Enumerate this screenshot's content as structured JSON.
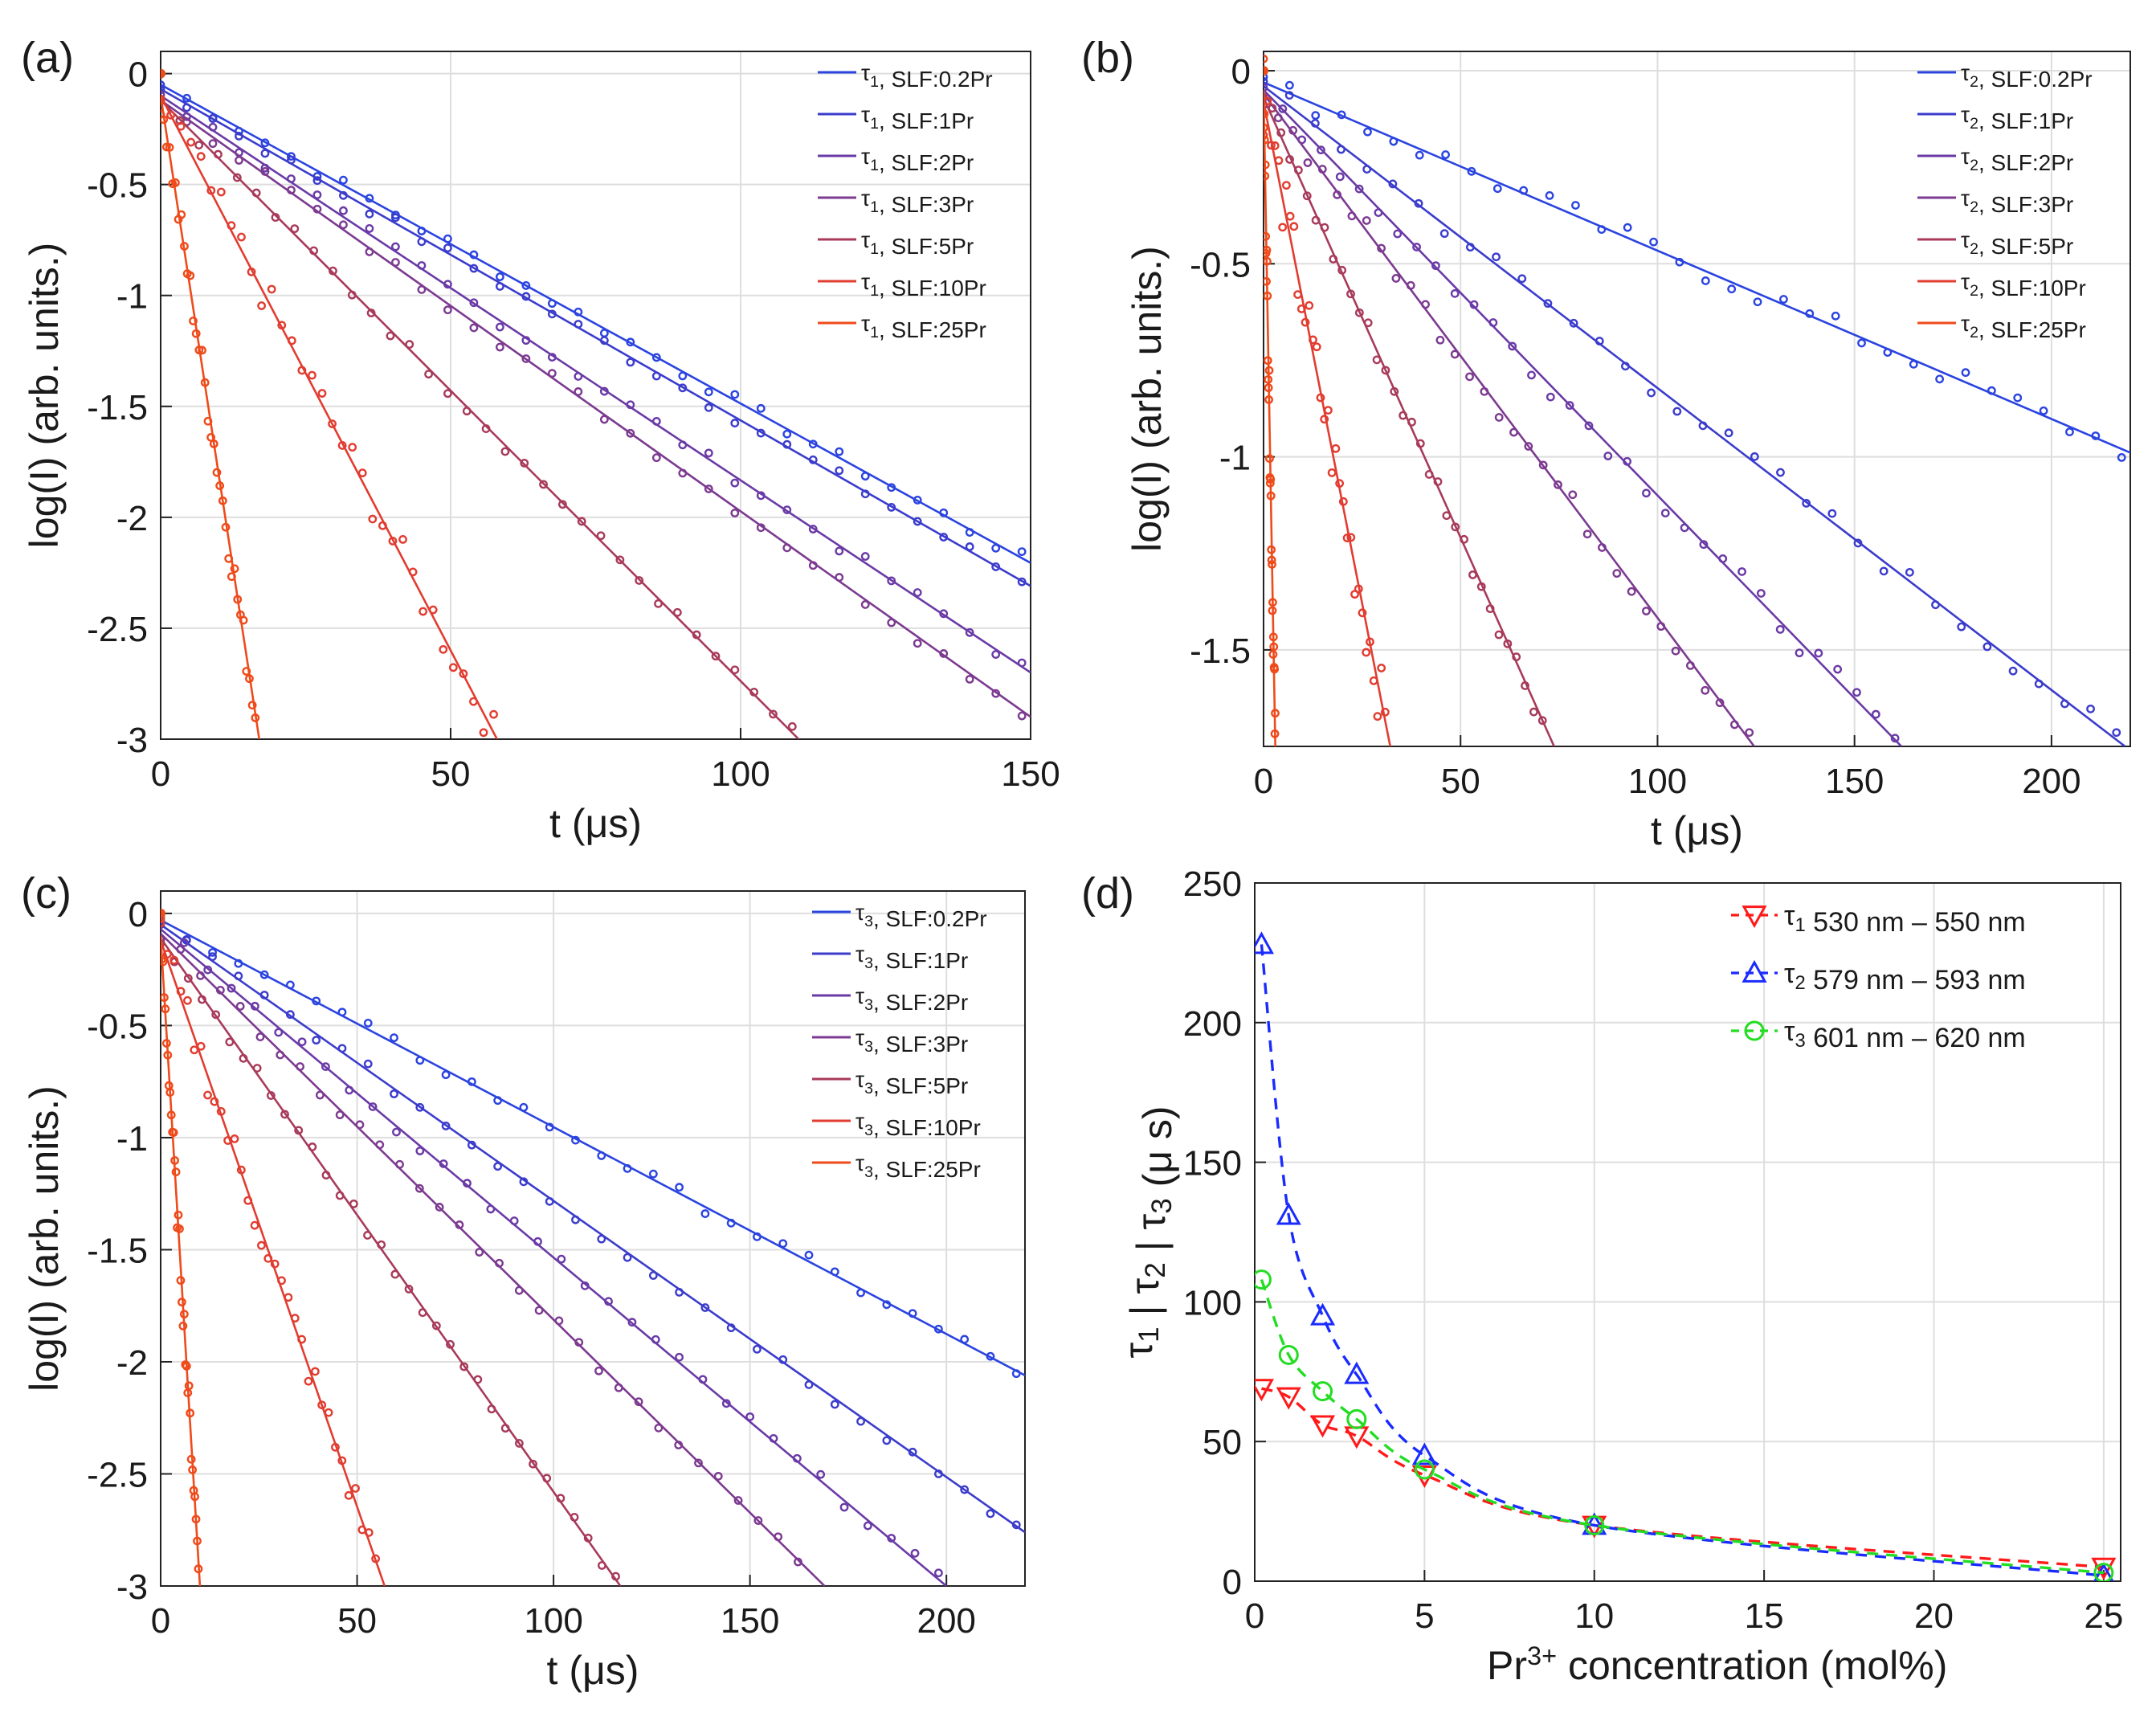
{
  "chart_data": [
    {
      "type": "scatter",
      "panel_label": "(a)",
      "xlabel": "t (μs)",
      "ylabel": "log(I) (arb. units.)",
      "xlim": [
        0,
        150
      ],
      "ylim": [
        -3,
        0.1
      ],
      "xticks": [
        "0",
        "50",
        "100",
        "150"
      ],
      "yticks": [
        "0",
        "-0.5",
        "-1",
        "-1.5",
        "-2",
        "-2.5",
        "-3"
      ],
      "legend_position": "top-right",
      "series": [
        {
          "name": "τ1, SLF:0.2Pr",
          "color": "#2b44e0",
          "intercept": -0.05,
          "slope": -0.01437
        },
        {
          "name": "τ1, SLF:1Pr",
          "color": "#3b3ccc",
          "intercept": -0.07,
          "slope": -0.01493
        },
        {
          "name": "τ1, SLF:2Pr",
          "color": "#6a3aa6",
          "intercept": -0.1,
          "slope": -0.01733
        },
        {
          "name": "τ1, SLF:3Pr",
          "color": "#7c3a90",
          "intercept": -0.12,
          "slope": -0.01853
        },
        {
          "name": "τ1, SLF:5Pr",
          "color": "#a83a5a",
          "intercept": -0.12,
          "slope": -0.02618
        },
        {
          "name": "τ1, SLF:10Pr",
          "color": "#e23c30",
          "intercept": -0.1,
          "slope": -0.05
        },
        {
          "name": "τ1, SLF:25Pr",
          "color": "#ef4a1a",
          "intercept": -0.1,
          "slope": -0.1706
        }
      ]
    },
    {
      "type": "scatter",
      "panel_label": "(b)",
      "xlabel": "t (μs)",
      "ylabel": "log(I) (arb. units.)",
      "xlim": [
        0,
        220
      ],
      "ylim": [
        -1.75,
        0.05
      ],
      "xticks": [
        "0",
        "50",
        "100",
        "150",
        "200"
      ],
      "yticks": [
        "0",
        "-0.5",
        "-1",
        "-1.5"
      ],
      "legend_position": "top-right",
      "series": [
        {
          "name": "τ2, SLF:0.2Pr",
          "color": "#2b44e0",
          "intercept": -0.03,
          "slope": -0.00436
        },
        {
          "name": "τ2, SLF:1Pr",
          "color": "#3b3ccc",
          "intercept": -0.04,
          "slope": -0.00782
        },
        {
          "name": "τ2, SLF:2Pr",
          "color": "#6a3aa6",
          "intercept": -0.05,
          "slope": -0.0105
        },
        {
          "name": "τ2, SLF:3Pr",
          "color": "#7c3a90",
          "intercept": -0.06,
          "slope": -0.01357
        },
        {
          "name": "τ2, SLF:5Pr",
          "color": "#a83a5a",
          "intercept": -0.07,
          "slope": -0.02278
        },
        {
          "name": "τ2, SLF:10Pr",
          "color": "#e23c30",
          "intercept": -0.08,
          "slope": -0.05194
        },
        {
          "name": "τ2, SLF:25Pr",
          "color": "#ef4a1a",
          "intercept": -0.05,
          "slope": -0.57
        }
      ]
    },
    {
      "type": "scatter",
      "panel_label": "(c)",
      "xlabel": "t (μs)",
      "ylabel": "log(I) (arb. units.)",
      "xlim": [
        0,
        220
      ],
      "ylim": [
        -3,
        0.1
      ],
      "xticks": [
        "0",
        "50",
        "100",
        "150",
        "200"
      ],
      "yticks": [
        "0",
        "-0.5",
        "-1",
        "-1.5",
        "-2",
        "-2.5",
        "-3"
      ],
      "legend_position": "top-right",
      "series": [
        {
          "name": "τ3, SLF:0.2Pr",
          "color": "#2b44e0",
          "intercept": -0.03,
          "slope": -0.00923
        },
        {
          "name": "τ3, SLF:1Pr",
          "color": "#3b3ccc",
          "intercept": -0.05,
          "slope": -0.01232
        },
        {
          "name": "τ3, SLF:2Pr",
          "color": "#6a3aa6",
          "intercept": -0.07,
          "slope": -0.01465
        },
        {
          "name": "τ3, SLF:3Pr",
          "color": "#7c3a90",
          "intercept": -0.09,
          "slope": -0.01722
        },
        {
          "name": "τ3, SLF:5Pr",
          "color": "#a83a5a",
          "intercept": -0.11,
          "slope": -0.0247
        },
        {
          "name": "τ3, SLF:10Pr",
          "color": "#e23c30",
          "intercept": -0.12,
          "slope": -0.05053
        },
        {
          "name": "τ3, SLF:25Pr",
          "color": "#ef4a1a",
          "intercept": -0.1,
          "slope": -0.29
        }
      ]
    },
    {
      "type": "line",
      "panel_label": "(d)",
      "xlabel": "Pr3+ concentration (mol%)",
      "ylabel": "τ1 | τ2 | τ3 (μ s)",
      "xlim": [
        0,
        25.5
      ],
      "ylim": [
        0,
        250
      ],
      "xticks": [
        "0",
        "5",
        "10",
        "15",
        "20",
        "25"
      ],
      "yticks": [
        "0",
        "50",
        "100",
        "150",
        "200",
        "250"
      ],
      "legend_position": "top-right",
      "x": [
        0.2,
        1,
        2,
        3,
        5,
        10,
        25
      ],
      "series": [
        {
          "name": "τ1 530 nm – 550 nm",
          "color": "#ff1a1a",
          "marker": "triangle-down",
          "values": [
            69,
            66,
            56,
            52,
            38,
            20,
            5
          ]
        },
        {
          "name": "τ2 579 nm – 593 nm",
          "color": "#1a2bff",
          "marker": "triangle-up",
          "values": [
            228,
            131,
            95,
            74,
            45,
            20,
            2
          ]
        },
        {
          "name": "τ3 601 nm – 620 nm",
          "color": "#22dd22",
          "marker": "circle",
          "values": [
            108,
            81,
            68,
            58,
            40,
            20,
            3
          ]
        }
      ]
    }
  ]
}
